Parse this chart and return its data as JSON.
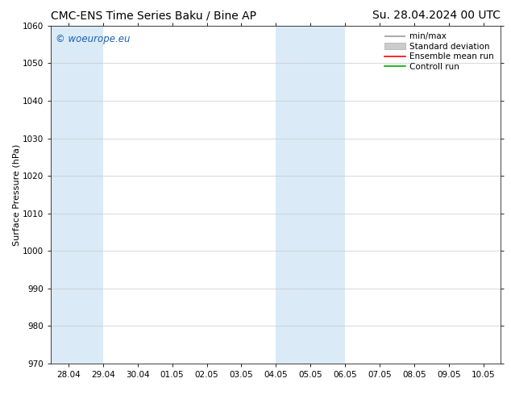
{
  "title_left": "CMC-ENS Time Series Baku / Bine AP",
  "title_right": "Su. 28.04.2024 00 UTC",
  "ylabel": "Surface Pressure (hPa)",
  "ylim": [
    970,
    1060
  ],
  "yticks": [
    970,
    980,
    990,
    1000,
    1010,
    1020,
    1030,
    1040,
    1050,
    1060
  ],
  "xlim_start": -0.5,
  "xlim_end": 12.5,
  "xtick_labels": [
    "28.04",
    "29.04",
    "30.04",
    "01.05",
    "02.05",
    "03.05",
    "04.05",
    "05.05",
    "06.05",
    "07.05",
    "08.05",
    "09.05",
    "10.05"
  ],
  "xtick_positions": [
    0,
    1,
    2,
    3,
    4,
    5,
    6,
    7,
    8,
    9,
    10,
    11,
    12
  ],
  "shaded_regions": [
    {
      "xstart": -0.5,
      "xend": 1.0,
      "color": "#daeaf7"
    },
    {
      "xstart": 6.0,
      "xend": 8.0,
      "color": "#daeaf7"
    }
  ],
  "watermark_text": "© woeurope.eu",
  "watermark_color": "#1a5fae",
  "background_color": "#ffffff",
  "plot_bg_color": "#ffffff",
  "grid_color": "#c8c8c8",
  "legend_entries": [
    {
      "label": "min/max",
      "color": "#999999",
      "lw": 1.2,
      "style": "minmax"
    },
    {
      "label": "Standard deviation",
      "color": "#cccccc",
      "lw": 5,
      "style": "band"
    },
    {
      "label": "Ensemble mean run",
      "color": "#ff0000",
      "lw": 1.2,
      "style": "line"
    },
    {
      "label": "Controll run",
      "color": "#00aa00",
      "lw": 1.2,
      "style": "line"
    }
  ],
  "title_fontsize": 10,
  "ylabel_fontsize": 8,
  "tick_fontsize": 7.5,
  "legend_fontsize": 7.5,
  "watermark_fontsize": 8.5
}
